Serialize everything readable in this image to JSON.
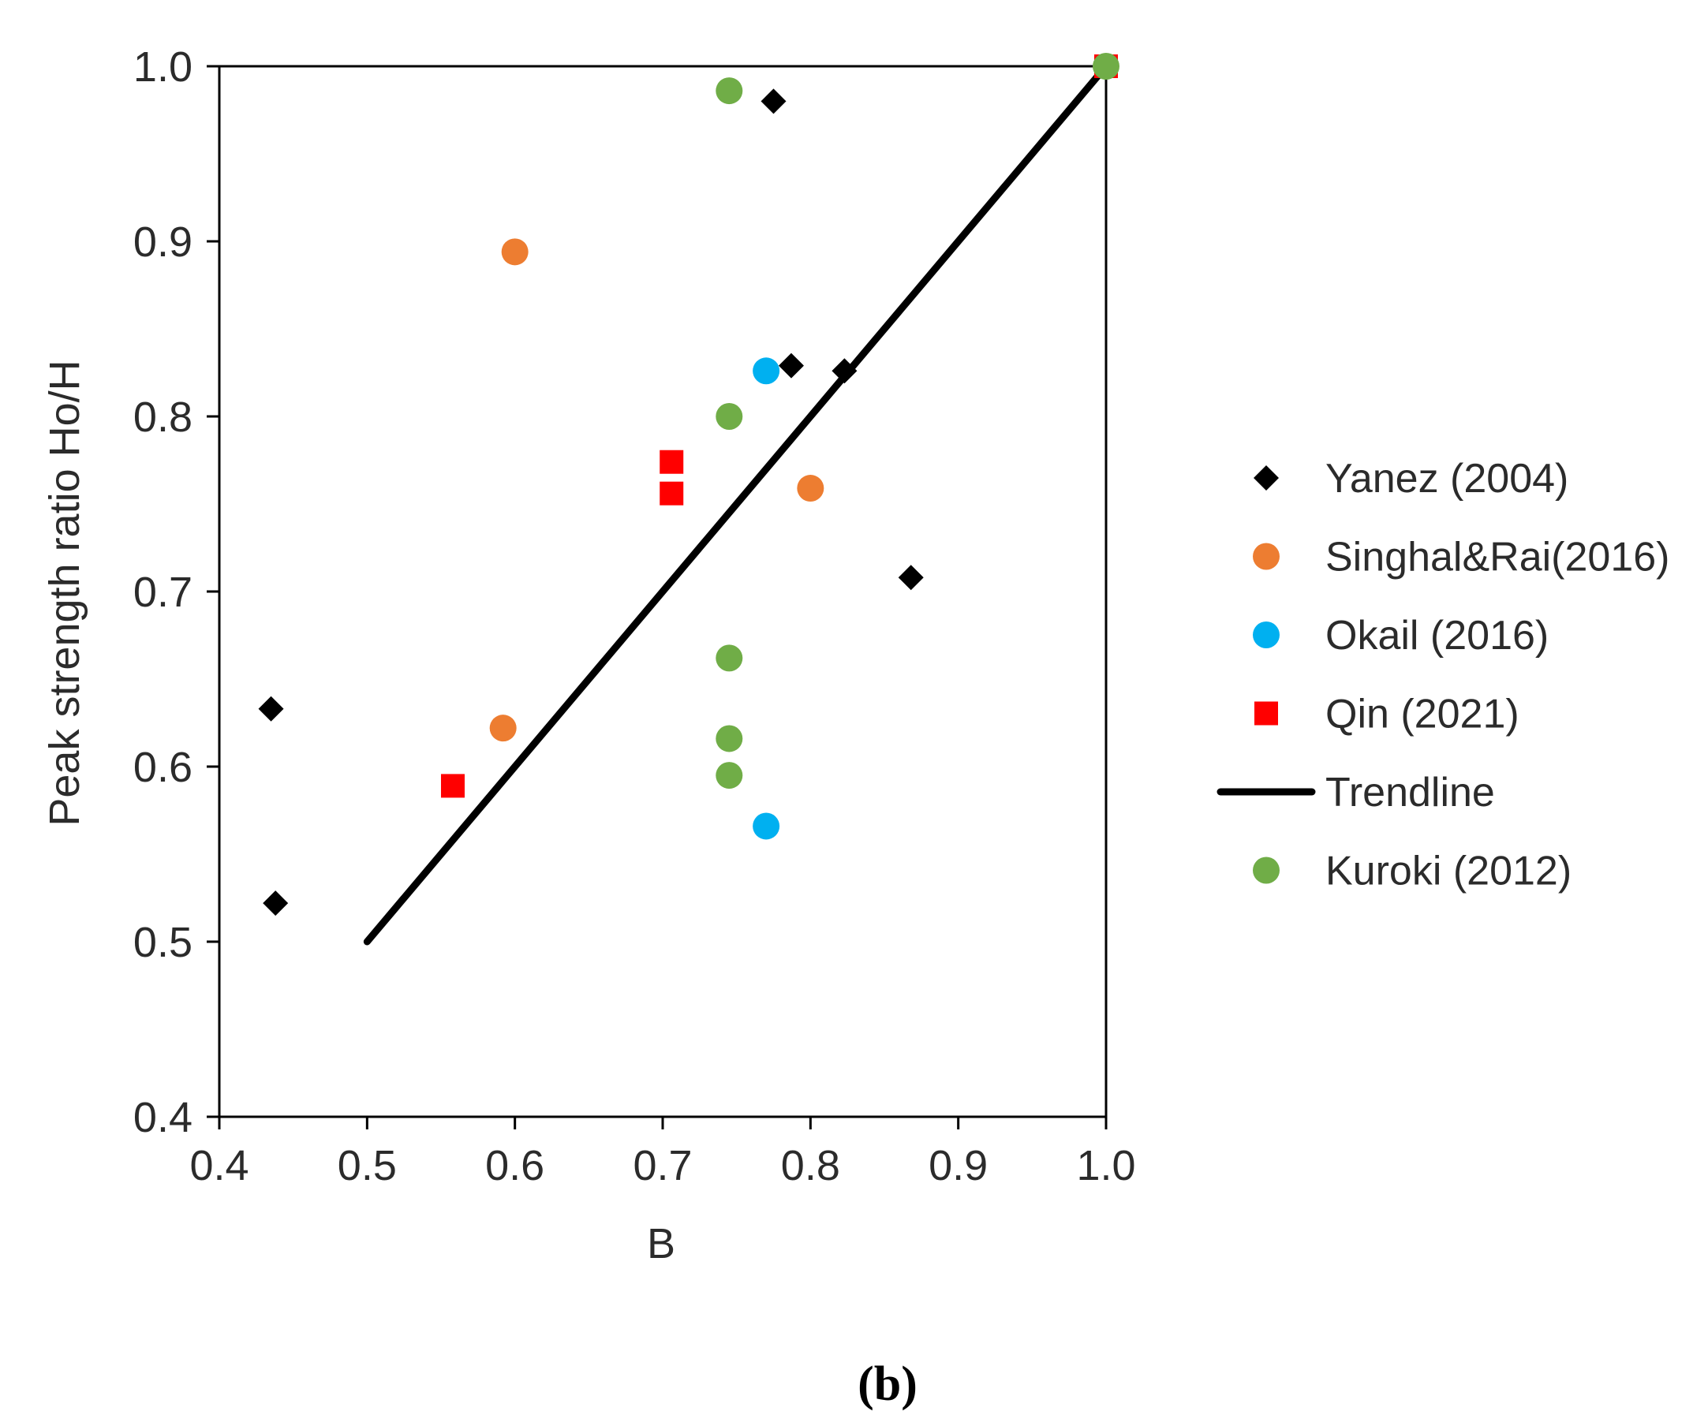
{
  "chart_data": {
    "type": "scatter",
    "title": "",
    "xlabel": "B",
    "ylabel": "Peak strength ratio Ho/H",
    "xlim": [
      0.4,
      1.0
    ],
    "ylim": [
      0.4,
      1.0
    ],
    "x_ticks": [
      "0.4",
      "0.5",
      "0.6",
      "0.7",
      "0.8",
      "0.9",
      "1.0"
    ],
    "y_ticks": [
      "0.4",
      "0.5",
      "0.6",
      "0.7",
      "0.8",
      "0.9",
      "1.0"
    ],
    "grid": false,
    "legend_position": "right",
    "series": [
      {
        "name": "Yanez (2004)",
        "marker": "diamond",
        "color": "#000000",
        "points": [
          {
            "x": 0.435,
            "y": 0.633
          },
          {
            "x": 0.438,
            "y": 0.522
          },
          {
            "x": 0.775,
            "y": 0.98
          },
          {
            "x": 0.787,
            "y": 0.829
          },
          {
            "x": 0.823,
            "y": 0.826
          },
          {
            "x": 0.868,
            "y": 0.708
          }
        ]
      },
      {
        "name": "Singhal&Rai(2016)",
        "marker": "circle",
        "color": "#ed7d31",
        "points": [
          {
            "x": 0.6,
            "y": 0.894
          },
          {
            "x": 0.592,
            "y": 0.622
          },
          {
            "x": 0.8,
            "y": 0.759
          }
        ]
      },
      {
        "name": "Okail (2016)",
        "marker": "circle",
        "color": "#00b0f0",
        "points": [
          {
            "x": 0.77,
            "y": 0.826
          },
          {
            "x": 0.77,
            "y": 0.566
          }
        ]
      },
      {
        "name": "Qin (2021)",
        "marker": "square",
        "color": "#ff0000",
        "points": [
          {
            "x": 0.558,
            "y": 0.589
          },
          {
            "x": 0.706,
            "y": 0.774
          },
          {
            "x": 0.706,
            "y": 0.756
          },
          {
            "x": 1.0,
            "y": 1.0
          }
        ]
      },
      {
        "name": "Trendline",
        "marker": "line",
        "color": "#000000",
        "points": [
          {
            "x": 0.5,
            "y": 0.5
          },
          {
            "x": 1.0,
            "y": 1.0
          }
        ]
      },
      {
        "name": "Kuroki (2012)",
        "marker": "circle",
        "color": "#70ad47",
        "points": [
          {
            "x": 0.745,
            "y": 0.986
          },
          {
            "x": 0.745,
            "y": 0.8
          },
          {
            "x": 0.745,
            "y": 0.662
          },
          {
            "x": 0.745,
            "y": 0.616
          },
          {
            "x": 0.745,
            "y": 0.595
          },
          {
            "x": 1.0,
            "y": 1.0
          }
        ]
      }
    ]
  },
  "caption": "(b)"
}
